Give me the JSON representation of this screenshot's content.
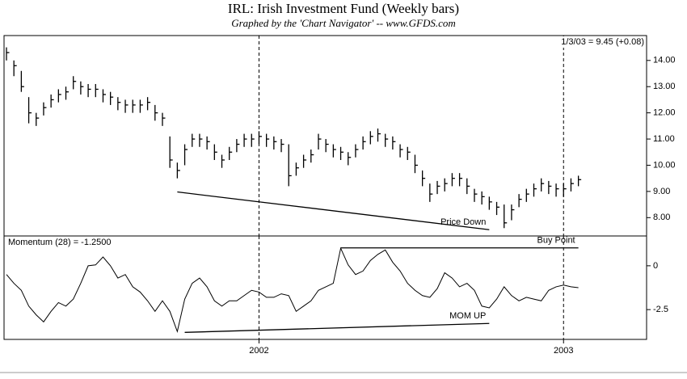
{
  "chart_data": [
    {
      "type": "ohlc",
      "title": "IRL:  Irish Investment Fund  (Weekly bars)",
      "subtitle": "Graphed by the 'Chart Navigator'  --  www.GFDS.com",
      "header": "1/3/03 = 9.45 (+0.08)",
      "categories": [
        null,
        null,
        null,
        null,
        null,
        null,
        null,
        null,
        null,
        null,
        null,
        null,
        null,
        null,
        null,
        null,
        null,
        null,
        null,
        null,
        null,
        null,
        null,
        null,
        null,
        null,
        null,
        null,
        null,
        null,
        null,
        null,
        null,
        null,
        "2002",
        null,
        null,
        null,
        null,
        null,
        null,
        null,
        null,
        null,
        null,
        null,
        null,
        null,
        null,
        null,
        null,
        null,
        null,
        null,
        null,
        null,
        null,
        null,
        null,
        null,
        null,
        null,
        null,
        null,
        null,
        null,
        null,
        null,
        null,
        null,
        null,
        null,
        null,
        null,
        null,
        "2003",
        null,
        null
      ],
      "high": [
        14.5,
        14.0,
        13.6,
        12.6,
        12.0,
        12.4,
        12.7,
        12.9,
        13.0,
        13.4,
        13.2,
        13.1,
        13.1,
        12.9,
        12.8,
        12.6,
        12.5,
        12.5,
        12.5,
        12.6,
        12.3,
        12.0,
        11.1,
        10.1,
        10.8,
        11.2,
        11.2,
        11.1,
        10.8,
        10.4,
        10.7,
        11.0,
        11.2,
        11.2,
        11.3,
        11.2,
        11.1,
        11.0,
        10.8,
        10.1,
        10.4,
        10.6,
        11.2,
        11.0,
        10.8,
        10.7,
        10.5,
        10.8,
        11.1,
        11.3,
        11.4,
        11.2,
        11.1,
        10.8,
        10.7,
        10.4,
        9.8,
        9.3,
        9.4,
        9.5,
        9.7,
        9.7,
        9.5,
        9.1,
        9.0,
        8.8,
        8.6,
        8.5,
        8.5,
        8.9,
        9.1,
        9.3,
        9.5,
        9.4,
        9.3,
        9.3,
        9.5,
        9.6
      ],
      "low": [
        14.0,
        13.4,
        12.8,
        11.6,
        11.5,
        11.9,
        12.2,
        12.4,
        12.5,
        12.9,
        12.7,
        12.6,
        12.6,
        12.4,
        12.3,
        12.1,
        12.0,
        12.0,
        12.0,
        12.1,
        11.7,
        11.5,
        9.9,
        9.5,
        10.0,
        10.7,
        10.7,
        10.6,
        10.2,
        9.9,
        10.2,
        10.5,
        10.7,
        10.7,
        10.8,
        10.7,
        10.6,
        10.5,
        9.2,
        9.6,
        9.9,
        10.1,
        10.6,
        10.5,
        10.3,
        10.2,
        10.0,
        10.3,
        10.6,
        10.8,
        10.9,
        10.7,
        10.6,
        10.3,
        10.2,
        9.7,
        9.2,
        8.6,
        8.9,
        9.0,
        9.2,
        9.2,
        8.9,
        8.6,
        8.5,
        8.3,
        8.1,
        7.6,
        7.9,
        8.4,
        8.6,
        8.8,
        9.0,
        8.9,
        8.8,
        8.8,
        9.0,
        9.2
      ],
      "close": [
        14.3,
        13.8,
        13.0,
        12.0,
        11.8,
        12.2,
        12.5,
        12.7,
        12.8,
        13.2,
        13.0,
        12.9,
        12.9,
        12.7,
        12.6,
        12.4,
        12.3,
        12.3,
        12.3,
        12.4,
        12.0,
        11.8,
        10.2,
        9.8,
        10.6,
        11.0,
        11.0,
        10.9,
        10.5,
        10.2,
        10.5,
        10.8,
        11.0,
        11.0,
        11.1,
        11.0,
        10.9,
        10.8,
        9.6,
        9.9,
        10.2,
        10.4,
        11.0,
        10.8,
        10.6,
        10.5,
        10.3,
        10.6,
        10.9,
        11.1,
        11.2,
        11.0,
        10.9,
        10.6,
        10.5,
        10.0,
        9.5,
        8.9,
        9.2,
        9.3,
        9.5,
        9.5,
        9.2,
        8.9,
        8.8,
        8.6,
        8.4,
        7.8,
        8.3,
        8.7,
        8.9,
        9.1,
        9.3,
        9.2,
        9.1,
        9.1,
        9.3,
        9.45
      ],
      "color": "#000000",
      "ylim": [
        7.3,
        14.95
      ],
      "yticks": [
        {
          "value": 14,
          "label": "14.00"
        },
        {
          "value": 13,
          "label": "13.00"
        },
        {
          "value": 12,
          "label": "12.00"
        },
        {
          "value": 11,
          "label": "11.00"
        },
        {
          "value": 10,
          "label": "10.00"
        },
        {
          "value": 9,
          "label": "9.00"
        },
        {
          "value": 8,
          "label": "8.00"
        }
      ],
      "trendlines": [
        {
          "label": "Price Down",
          "x": [
            23,
            65
          ],
          "y": [
            8.98,
            7.54
          ]
        }
      ]
    },
    {
      "type": "line",
      "title": "Momentum (28) = -1.2500",
      "categories": [
        null,
        null,
        null,
        null,
        null,
        null,
        null,
        null,
        null,
        null,
        null,
        null,
        null,
        null,
        null,
        null,
        null,
        null,
        null,
        null,
        null,
        null,
        null,
        null,
        null,
        null,
        null,
        null,
        null,
        null,
        null,
        null,
        null,
        null,
        "2002",
        null,
        null,
        null,
        null,
        null,
        null,
        null,
        null,
        null,
        null,
        null,
        null,
        null,
        null,
        null,
        null,
        null,
        null,
        null,
        null,
        null,
        null,
        null,
        null,
        null,
        null,
        null,
        null,
        null,
        null,
        null,
        null,
        null,
        null,
        null,
        null,
        null,
        null,
        null,
        null,
        "2003",
        null,
        null
      ],
      "values": [
        -0.5,
        -1.0,
        -1.4,
        -2.3,
        -2.8,
        -3.2,
        -2.6,
        -2.1,
        -2.3,
        -1.9,
        -1.0,
        0.0,
        0.05,
        0.5,
        0.0,
        -0.7,
        -0.5,
        -1.2,
        -1.5,
        -2.0,
        -2.6,
        -2.0,
        -2.6,
        -3.75,
        -1.9,
        -1.0,
        -0.7,
        -1.2,
        -2.0,
        -2.3,
        -2.0,
        -2.0,
        -1.7,
        -1.4,
        -1.5,
        -1.8,
        -1.8,
        -1.6,
        -1.7,
        -2.6,
        -2.3,
        -2.0,
        -1.4,
        -1.2,
        -1.0,
        1.0,
        0.05,
        -0.5,
        -0.3,
        0.3,
        0.65,
        0.9,
        0.2,
        -0.3,
        -1.0,
        -1.4,
        -1.7,
        -1.8,
        -1.3,
        -0.4,
        -0.7,
        -1.2,
        -1.0,
        -1.4,
        -2.3,
        -2.4,
        -1.9,
        -1.2,
        -1.7,
        -2.0,
        -1.8,
        -1.9,
        -2.0,
        -1.4,
        -1.2,
        -1.1,
        -1.2,
        -1.25
      ],
      "color": "#000000",
      "ylim": [
        -4.2,
        1.7
      ],
      "yticks": [
        0,
        -2.5
      ],
      "trendlines": [
        {
          "label": "Buy Point",
          "x": [
            45,
            77
          ],
          "y": [
            1.02,
            1.02
          ]
        },
        {
          "label": "MOM UP",
          "x": [
            24,
            65
          ],
          "y": [
            -3.8,
            -3.29
          ]
        }
      ]
    }
  ]
}
